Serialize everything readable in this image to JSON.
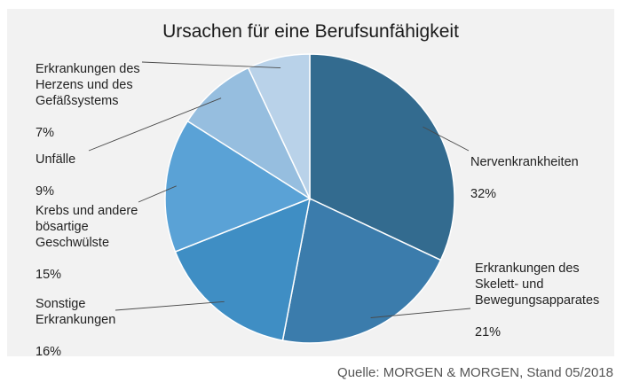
{
  "chart_data": {
    "type": "pie",
    "title": "Ursachen für eine Berufsunfähigkeit",
    "slices": [
      {
        "label": "Nervenkrankheiten",
        "value": 32,
        "value_text": "32%",
        "color": "#336b8f"
      },
      {
        "label": "Erkrankungen des\nSkelett- und\nBewegungsapparates",
        "value": 21,
        "value_text": "21%",
        "color": "#3b7cac"
      },
      {
        "label": "Sonstige\nErkrankungen",
        "value": 16,
        "value_text": "16%",
        "color": "#3f8ec4"
      },
      {
        "label": "Krebs und andere\nbösartige\nGeschwülste",
        "value": 15,
        "value_text": "15%",
        "color": "#5aa2d6"
      },
      {
        "label": "Unfälle",
        "value": 9,
        "value_text": "9%",
        "color": "#96bedf"
      },
      {
        "label": "Erkrankungen des\nHerzens und des\nGefäßsystems",
        "value": 7,
        "value_text": "7%",
        "color": "#b9d2e9"
      }
    ]
  },
  "source": "Quelle: MORGEN & MORGEN, Stand 05/2018"
}
